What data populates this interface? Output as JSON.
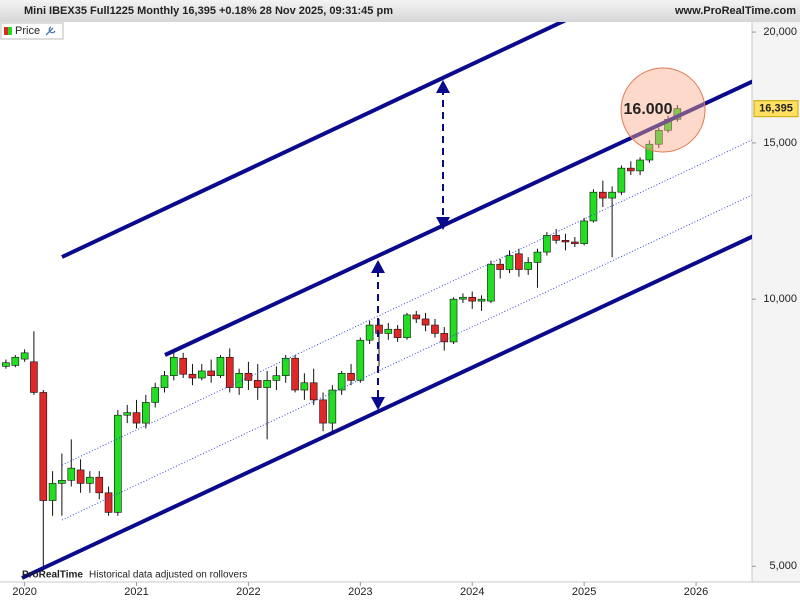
{
  "chart_data": {
    "type": "candlestick",
    "title": "Mini IBEX35 Full1225 Monthly 16,395 +0.18% 28 Nov 2025, 09:31:45 pm",
    "source": "www.ProRealTime.com",
    "footer_logo": "ProRealTime",
    "footer_note": "Historical data adjusted on rollovers",
    "annotations": [
      {
        "text": "16.000"
      }
    ],
    "last_price": {
      "value": 16395,
      "label": "16,395"
    },
    "log_scale": true,
    "up_color": "#22dd22",
    "down_color": "#e02828",
    "x": [
      2019.833,
      2019.917,
      2020,
      2020.083,
      2020.167,
      2020.25,
      2020.333,
      2020.417,
      2020.5,
      2020.583,
      2020.667,
      2020.75,
      2020.833,
      2020.917,
      2021,
      2021.083,
      2021.167,
      2021.25,
      2021.333,
      2021.417,
      2021.5,
      2021.583,
      2021.667,
      2021.75,
      2021.833,
      2021.917,
      2022,
      2022.083,
      2022.167,
      2022.25,
      2022.333,
      2022.417,
      2022.5,
      2022.583,
      2022.667,
      2022.75,
      2022.833,
      2022.917,
      2023,
      2023.083,
      2023.167,
      2023.25,
      2023.333,
      2023.417,
      2023.5,
      2023.583,
      2023.667,
      2023.75,
      2023.833,
      2023.917,
      2024,
      2024.083,
      2024.167,
      2024.25,
      2024.333,
      2024.417,
      2024.5,
      2024.583,
      2024.667,
      2024.75,
      2024.833,
      2024.917,
      2025,
      2025.083,
      2025.167,
      2025.25,
      2025.333,
      2025.417,
      2025.5,
      2025.583,
      2025.667,
      2025.75,
      2025.833
    ],
    "series": [
      {
        "name": "Price",
        "open": [
          8400,
          8420,
          8560,
          8500,
          7850,
          5930,
          6200,
          6250,
          6420,
          6200,
          6300,
          6050,
          5750,
          7400,
          7450,
          7250,
          7650,
          7950,
          8200,
          8580,
          8230,
          8150,
          8300,
          8200,
          8600,
          7950,
          8250,
          8100,
          7950,
          8100,
          8200,
          8580,
          7900,
          8050,
          7700,
          7250,
          7900,
          8250,
          8100,
          8990,
          9350,
          9150,
          9250,
          9050,
          9600,
          9500,
          9350,
          9150,
          8950,
          10000,
          10050,
          9950,
          9950,
          10950,
          10800,
          11250,
          10800,
          11000,
          11300,
          11800,
          11650,
          11600,
          11550,
          12250,
          13200,
          13000,
          13200,
          14050,
          13950,
          14350,
          14950,
          15500,
          15950
        ],
        "high": [
          8550,
          8650,
          8780,
          9200,
          7900,
          6400,
          6700,
          6950,
          6600,
          6400,
          6400,
          6150,
          7500,
          7600,
          7700,
          7800,
          8050,
          8300,
          8700,
          8700,
          8450,
          8450,
          8550,
          8650,
          8800,
          8350,
          8500,
          8450,
          8300,
          8400,
          8650,
          8650,
          8250,
          8350,
          7850,
          8000,
          8300,
          8450,
          9050,
          9450,
          9500,
          9400,
          9350,
          9650,
          9700,
          9650,
          9500,
          9300,
          10050,
          10150,
          10200,
          10100,
          11050,
          11100,
          11350,
          11400,
          11150,
          11400,
          11900,
          12000,
          11850,
          11750,
          12350,
          13300,
          13600,
          13400,
          14150,
          14300,
          14450,
          15100,
          15600,
          16100,
          16550
        ],
        "low": [
          8350,
          8380,
          8500,
          7800,
          5000,
          5700,
          5700,
          6150,
          6050,
          6050,
          5950,
          5700,
          5700,
          7250,
          7150,
          7150,
          7550,
          7850,
          8100,
          8150,
          8000,
          8100,
          8050,
          8150,
          7850,
          7800,
          7900,
          7700,
          6950,
          7900,
          8050,
          7850,
          7700,
          7600,
          7100,
          7100,
          7800,
          8000,
          8050,
          8900,
          8400,
          9000,
          8950,
          9000,
          9400,
          9200,
          9050,
          8750,
          8900,
          9900,
          9750,
          9700,
          9900,
          10550,
          10700,
          10600,
          10650,
          10300,
          11200,
          11550,
          11350,
          11450,
          11500,
          12200,
          12700,
          11150,
          13100,
          13800,
          13800,
          14250,
          14800,
          15400,
          15850
        ],
        "close": [
          8480,
          8600,
          8700,
          7850,
          5930,
          6200,
          6250,
          6450,
          6200,
          6300,
          6050,
          5750,
          7400,
          7450,
          7250,
          7650,
          7950,
          8200,
          8600,
          8230,
          8150,
          8300,
          8200,
          8600,
          7950,
          8250,
          8100,
          7950,
          8100,
          8200,
          8580,
          7900,
          8050,
          7700,
          7250,
          7900,
          8250,
          8100,
          8990,
          9350,
          9150,
          9250,
          9050,
          9600,
          9500,
          9350,
          9150,
          8950,
          10000,
          10050,
          9950,
          10000,
          10950,
          10800,
          11200,
          10800,
          11000,
          11300,
          11800,
          11650,
          11600,
          11550,
          12250,
          13200,
          13000,
          13200,
          14050,
          13950,
          14350,
          14950,
          15500,
          15950,
          16395
        ]
      }
    ],
    "xlim": [
      2019.78,
      2026.5
    ],
    "xticks": [
      2020,
      2021,
      2022,
      2023,
      2024,
      2025,
      2026
    ],
    "ylim": [
      4800,
      20530
    ],
    "yticks": [
      {
        "value": 5000,
        "label": "5,000"
      },
      {
        "value": 10000,
        "label": "10,000"
      },
      {
        "value": 15000,
        "label": "15,000"
      },
      {
        "value": 20000,
        "label": "20,000"
      }
    ]
  }
}
